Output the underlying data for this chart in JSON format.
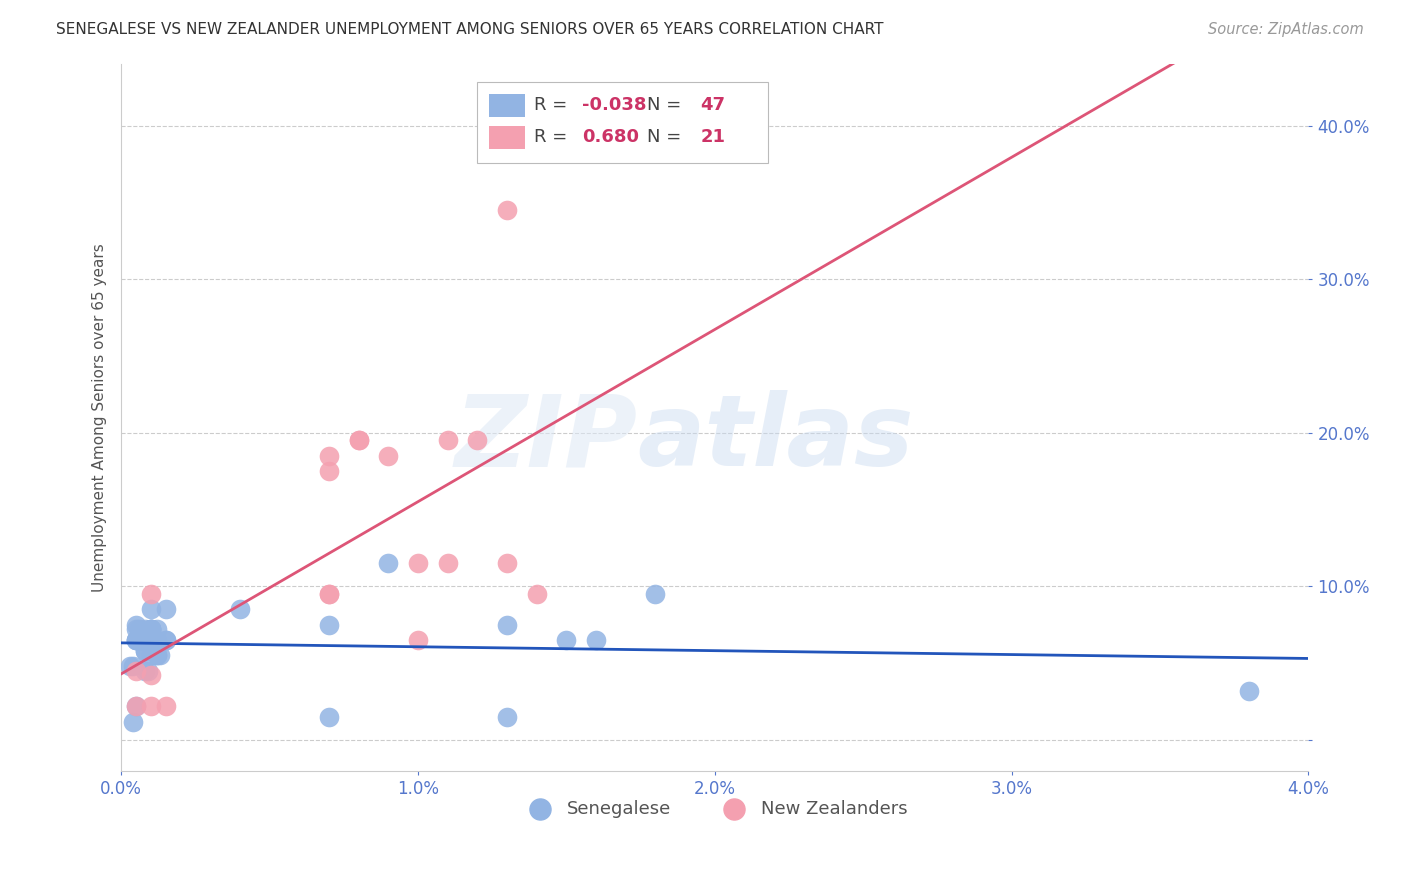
{
  "title": "SENEGALESE VS NEW ZEALANDER UNEMPLOYMENT AMONG SENIORS OVER 65 YEARS CORRELATION CHART",
  "source": "Source: ZipAtlas.com",
  "ylabel": "Unemployment Among Seniors over 65 years",
  "xlim": [
    0.0,
    0.04
  ],
  "ylim": [
    -0.02,
    0.44
  ],
  "xticks": [
    0.0,
    0.01,
    0.02,
    0.03,
    0.04
  ],
  "yticks": [
    0.0,
    0.1,
    0.2,
    0.3,
    0.4
  ],
  "xtick_labels": [
    "0.0%",
    "1.0%",
    "2.0%",
    "3.0%",
    "4.0%"
  ],
  "ytick_labels": [
    "",
    "10.0%",
    "20.0%",
    "30.0%",
    "40.0%"
  ],
  "blue_R": -0.038,
  "blue_N": 47,
  "pink_R": 0.68,
  "pink_N": 21,
  "blue_color": "#92b4e3",
  "pink_color": "#f4a0b0",
  "blue_line_color": "#2255bb",
  "pink_line_color": "#dd5577",
  "watermark_zip": "ZIP",
  "watermark_atlas": "atlas",
  "legend_label_blue": "Senegalese",
  "legend_label_pink": "New Zealanders",
  "blue_x": [
    0.0005,
    0.0008,
    0.0005,
    0.001,
    0.0012,
    0.0007,
    0.0003,
    0.0015,
    0.0005,
    0.001,
    0.0004,
    0.0008,
    0.001,
    0.0012,
    0.0006,
    0.001,
    0.0015,
    0.001,
    0.0005,
    0.0008,
    0.001,
    0.0004,
    0.0006,
    0.001,
    0.0012,
    0.0008,
    0.001,
    0.0005,
    0.0013,
    0.0009,
    0.0015,
    0.001,
    0.001,
    0.0005,
    0.001,
    0.0012,
    0.0007,
    0.009,
    0.007,
    0.004,
    0.013,
    0.007,
    0.015,
    0.013,
    0.016,
    0.018,
    0.038
  ],
  "blue_y": [
    0.075,
    0.072,
    0.065,
    0.068,
    0.065,
    0.065,
    0.048,
    0.065,
    0.072,
    0.072,
    0.048,
    0.058,
    0.065,
    0.072,
    0.072,
    0.085,
    0.085,
    0.072,
    0.065,
    0.058,
    0.065,
    0.012,
    0.065,
    0.072,
    0.055,
    0.045,
    0.065,
    0.065,
    0.055,
    0.045,
    0.065,
    0.055,
    0.072,
    0.022,
    0.065,
    0.055,
    0.065,
    0.115,
    0.075,
    0.085,
    0.075,
    0.015,
    0.065,
    0.015,
    0.065,
    0.095,
    0.032
  ],
  "pink_x": [
    0.0005,
    0.001,
    0.0005,
    0.001,
    0.0015,
    0.001,
    0.008,
    0.007,
    0.007,
    0.007,
    0.008,
    0.009,
    0.007,
    0.01,
    0.011,
    0.01,
    0.011,
    0.012,
    0.013,
    0.013,
    0.014
  ],
  "pink_y": [
    0.045,
    0.042,
    0.022,
    0.022,
    0.022,
    0.095,
    0.195,
    0.175,
    0.185,
    0.095,
    0.195,
    0.185,
    0.095,
    0.115,
    0.115,
    0.065,
    0.195,
    0.195,
    0.115,
    0.345,
    0.095
  ]
}
